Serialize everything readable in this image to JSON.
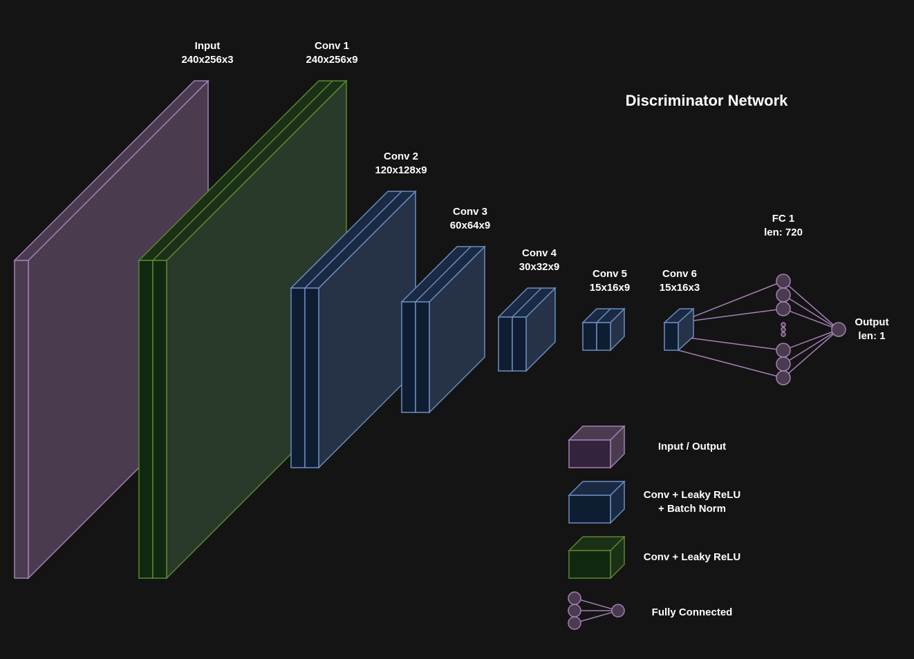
{
  "title": "Discriminator Network",
  "layers": {
    "input": {
      "name": "Input",
      "dims": "240x256x3"
    },
    "conv1": {
      "name": "Conv 1",
      "dims": "240x256x9"
    },
    "conv2": {
      "name": "Conv 2",
      "dims": "120x128x9"
    },
    "conv3": {
      "name": "Conv 3",
      "dims": "60x64x9"
    },
    "conv4": {
      "name": "Conv 4",
      "dims": "30x32x9"
    },
    "conv5": {
      "name": "Conv 5",
      "dims": "15x16x9"
    },
    "conv6": {
      "name": "Conv 6",
      "dims": "15x16x3"
    },
    "fc1": {
      "name": "FC 1",
      "dims": "len: 720"
    },
    "output": {
      "name": "Output",
      "dims": "len: 1"
    }
  },
  "legend": {
    "io": "Input / Output",
    "conv_bn_line1": "Conv + Leaky ReLU",
    "conv_bn_line2": "+ Batch Norm",
    "conv": "Conv + Leaky ReLU",
    "fc": "Fully Connected"
  },
  "colors": {
    "background": "#141414",
    "io_stroke": "#a680b8",
    "io_fill": "#4a3b4f",
    "conv_bn_stroke": "#6c8ebf",
    "conv_bn_fill": "#0f1d33",
    "conv_stroke": "#5a8a2e",
    "conv_fill": "#102710"
  }
}
